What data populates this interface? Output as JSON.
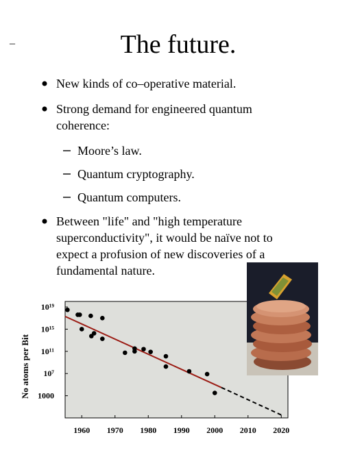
{
  "title": "The  future.",
  "dash": "–",
  "bullets": [
    {
      "lines": [
        "New kinds of co–operative material."
      ]
    },
    {
      "lines": [
        "Strong demand for engineered quantum",
        "coherence:"
      ],
      "subitems": [
        "Moore’s law.",
        "Quantum cryptography.",
        "Quantum computers."
      ]
    },
    {
      "lines": [
        "Between \"life\" and \"high temperature",
        "superconductivity\", it would be naïve not to",
        "expect  a profusion of new discoveries of a",
        "fundamental  nature."
      ]
    }
  ],
  "chart_data": {
    "type": "scatter",
    "y_label": "No atoms per Bit",
    "yscale": "log",
    "xlim": [
      1955,
      2022
    ],
    "ylim": [
      0.1,
      1e+20
    ],
    "xticks": [
      1960,
      1970,
      1980,
      1990,
      2000,
      2010,
      2020
    ],
    "yticks": [
      {
        "value": 1e+19,
        "label": "10¹⁹"
      },
      {
        "value": 1000000000000000.0,
        "label": "10¹⁵"
      },
      {
        "value": 100000000000.0,
        "label": "10¹¹"
      },
      {
        "value": 10000000.0,
        "label": "10⁷"
      },
      1000
    ],
    "series": [
      {
        "color": "#000000",
        "x": [
          1955.7,
          1958.8,
          1959.4,
          1960,
          1962.7,
          1962.9,
          1963.7,
          1966.2,
          1966.2,
          1973,
          1975.9,
          1975.9,
          1978.6,
          1980.7,
          1985.3,
          1985.3,
          1992.3,
          1997.7,
          2000
        ],
        "values": [
          3e+18,
          4e+17,
          4e+17,
          1000000000000000.0,
          2.5e+17,
          56000000000000.0,
          180000000000000.0,
          1e+17,
          18000000000000.0,
          56000000000.0,
          320000000000.0,
          100000000000.0,
          250000000000.0,
          80000000000.0,
          13000000000.0,
          180000000.0,
          25000000.0,
          8000000.0,
          3200
        ]
      }
    ],
    "trend": {
      "color": "#9b1c14",
      "x": [
        1955,
        2002
      ],
      "values": [
        2e+17,
        30000.0
      ]
    },
    "extrapolation": {
      "color": "#000000",
      "dashed": true,
      "x": [
        2002,
        2020
      ],
      "values": [
        30000.0,
        0.34
      ]
    },
    "plot_background": "#dedfdb"
  }
}
